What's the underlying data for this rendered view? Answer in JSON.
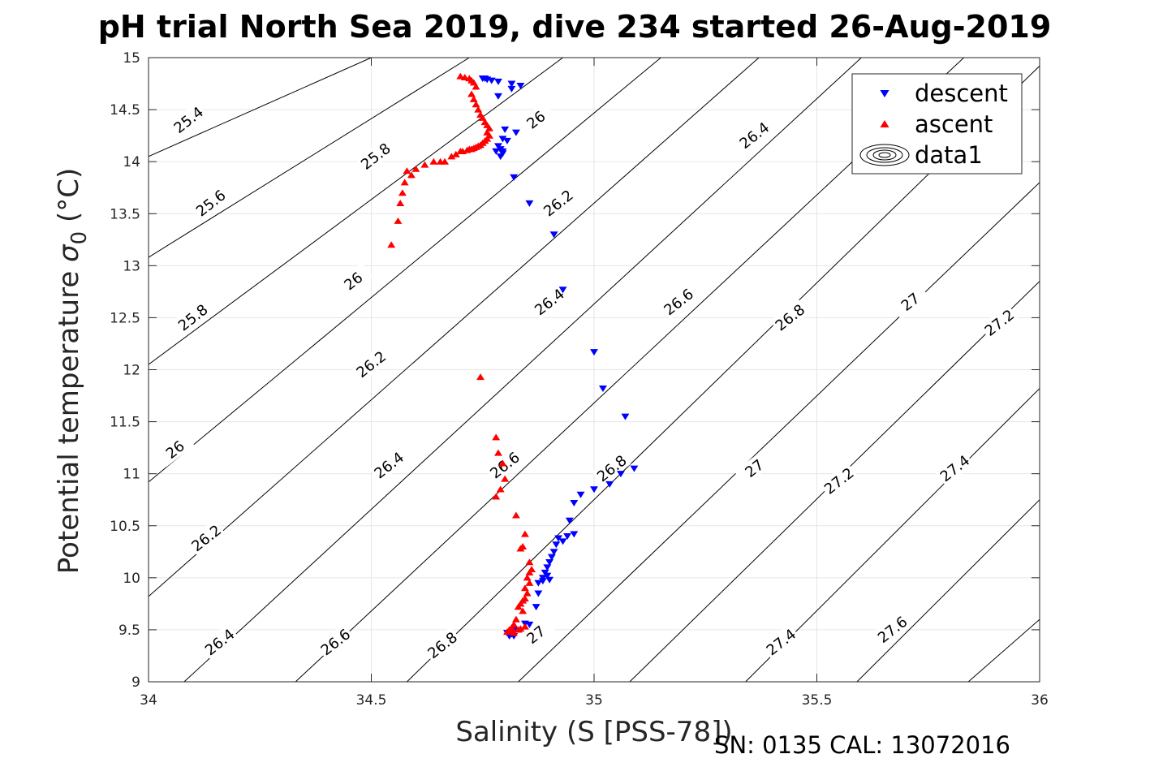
{
  "chart_data": {
    "type": "scatter",
    "title": "pH trial North Sea 2019, dive 234 started 26-Aug-2019",
    "xlabel": "Salinity (S [PSS-78])",
    "ylabel_main": "Potential temperature ",
    "ylabel_sigma": "σ",
    "ylabel_sub": "0",
    "ylabel_unit": " (°C)",
    "footer": "SN: 0135  CAL: 13072016",
    "xlim": [
      34,
      36
    ],
    "ylim": [
      9,
      15
    ],
    "xticks": [
      34,
      34.5,
      35,
      35.5,
      36
    ],
    "xtick_labels": [
      "34",
      "34.5",
      "35",
      "35.5",
      "36"
    ],
    "yticks": [
      9,
      9.5,
      10,
      10.5,
      11,
      11.5,
      12,
      12.5,
      13,
      13.5,
      14,
      14.5,
      15
    ],
    "ytick_labels": [
      "9",
      "9.5",
      "10",
      "10.5",
      "11",
      "11.5",
      "12",
      "12.5",
      "13",
      "13.5",
      "14",
      "14.5",
      "15"
    ],
    "grid": true,
    "legend_position": "top-right",
    "legend": [
      {
        "name": "descent",
        "marker": "triangle-down",
        "color": "#0000ff"
      },
      {
        "name": "ascent",
        "marker": "triangle-up",
        "color": "#ff0000"
      },
      {
        "name": "data1",
        "marker": "contour",
        "color": "#000000"
      }
    ],
    "contour_lines": [
      {
        "s0": 34.0,
        "t0": 14.05,
        "s1": 34.5,
        "t1": 15.0
      },
      {
        "s0": 34.0,
        "t0": 13.08,
        "s1": 34.72,
        "t1": 15.0
      },
      {
        "s0": 34.0,
        "t0": 12.05,
        "s1": 34.93,
        "t1": 15.0
      },
      {
        "s0": 34.0,
        "t0": 10.92,
        "s1": 35.15,
        "t1": 15.0
      },
      {
        "s0": 34.0,
        "t0": 9.82,
        "s1": 35.37,
        "t1": 15.0
      },
      {
        "s0": 34.08,
        "t0": 9.0,
        "s1": 35.6,
        "t1": 15.0
      },
      {
        "s0": 34.33,
        "t0": 9.0,
        "s1": 35.83,
        "t1": 15.0
      },
      {
        "s0": 34.58,
        "t0": 9.0,
        "s1": 36.0,
        "t1": 14.92
      },
      {
        "s0": 34.83,
        "t0": 9.0,
        "s1": 36.0,
        "t1": 13.8
      },
      {
        "s0": 35.08,
        "t0": 9.0,
        "s1": 36.0,
        "t1": 12.85
      },
      {
        "s0": 35.34,
        "t0": 9.0,
        "s1": 36.0,
        "t1": 11.82
      },
      {
        "s0": 35.59,
        "t0": 9.0,
        "s1": 36.0,
        "t1": 10.75
      },
      {
        "s0": 35.84,
        "t0": 9.0,
        "s1": 36.0,
        "t1": 9.6
      }
    ],
    "contour_labels": [
      {
        "text": "25.4",
        "s": 34.09,
        "t": 14.4
      },
      {
        "text": "25.8",
        "s": 34.51,
        "t": 14.05
      },
      {
        "text": "26",
        "s": 34.87,
        "t": 14.4
      },
      {
        "text": "26.4",
        "s": 35.36,
        "t": 14.25
      },
      {
        "text": "25.6",
        "s": 34.14,
        "t": 13.6
      },
      {
        "text": "26.2",
        "s": 34.92,
        "t": 13.6
      },
      {
        "text": "26",
        "s": 34.46,
        "t": 12.85
      },
      {
        "text": "26.4",
        "s": 34.9,
        "t": 12.65
      },
      {
        "text": "26.6",
        "s": 35.19,
        "t": 12.65
      },
      {
        "text": "26.8",
        "s": 35.44,
        "t": 12.5
      },
      {
        "text": "27",
        "s": 35.71,
        "t": 12.65
      },
      {
        "text": "27.2",
        "s": 35.91,
        "t": 12.45
      },
      {
        "text": "25.8",
        "s": 34.1,
        "t": 12.5
      },
      {
        "text": "26.2",
        "s": 34.5,
        "t": 12.05
      },
      {
        "text": "26",
        "s": 34.06,
        "t": 11.23
      },
      {
        "text": "26.4",
        "s": 34.54,
        "t": 11.08
      },
      {
        "text": "26.6",
        "s": 34.8,
        "t": 11.08
      },
      {
        "text": "26.8",
        "s": 35.04,
        "t": 11.05
      },
      {
        "text": "27",
        "s": 35.36,
        "t": 11.05
      },
      {
        "text": "27.2",
        "s": 35.55,
        "t": 10.93
      },
      {
        "text": "27.4",
        "s": 35.81,
        "t": 11.05
      },
      {
        "text": "26.2",
        "s": 34.13,
        "t": 10.38
      },
      {
        "text": "26.4",
        "s": 34.16,
        "t": 9.38
      },
      {
        "text": "26.6",
        "s": 34.42,
        "t": 9.38
      },
      {
        "text": "26.8",
        "s": 34.66,
        "t": 9.35
      },
      {
        "text": "27",
        "s": 34.87,
        "t": 9.45
      },
      {
        "text": "27.4",
        "s": 35.42,
        "t": 9.38
      },
      {
        "text": "27.6",
        "s": 35.67,
        "t": 9.5
      }
    ],
    "series": [
      {
        "name": "descent",
        "marker": "triangle-down",
        "color": "#0000ff",
        "points": [
          [
            34.75,
            14.8
          ],
          [
            34.76,
            14.79
          ],
          [
            34.755,
            14.8
          ],
          [
            34.77,
            14.78
          ],
          [
            34.785,
            14.77
          ],
          [
            34.815,
            14.75
          ],
          [
            34.835,
            14.73
          ],
          [
            34.785,
            14.63
          ],
          [
            34.815,
            14.7
          ],
          [
            34.8,
            14.31
          ],
          [
            34.825,
            14.28
          ],
          [
            34.795,
            14.22
          ],
          [
            34.805,
            14.2
          ],
          [
            34.785,
            14.15
          ],
          [
            34.79,
            14.12
          ],
          [
            34.795,
            14.1
          ],
          [
            34.78,
            14.1
          ],
          [
            34.79,
            14.05
          ],
          [
            34.795,
            14.08
          ],
          [
            34.82,
            13.85
          ],
          [
            34.855,
            13.6
          ],
          [
            34.91,
            13.3
          ],
          [
            34.93,
            12.77
          ],
          [
            35.0,
            12.17
          ],
          [
            35.02,
            11.82
          ],
          [
            35.07,
            11.55
          ],
          [
            35.09,
            11.05
          ],
          [
            35.06,
            11.0
          ],
          [
            35.035,
            10.9
          ],
          [
            35.0,
            10.85
          ],
          [
            34.97,
            10.8
          ],
          [
            34.955,
            10.72
          ],
          [
            34.945,
            10.55
          ],
          [
            34.955,
            10.42
          ],
          [
            34.94,
            10.4
          ],
          [
            34.92,
            10.38
          ],
          [
            34.93,
            10.35
          ],
          [
            34.915,
            10.32
          ],
          [
            34.91,
            10.25
          ],
          [
            34.905,
            10.2
          ],
          [
            34.9,
            10.15
          ],
          [
            34.895,
            10.1
          ],
          [
            34.89,
            10.05
          ],
          [
            34.895,
            10.02
          ],
          [
            34.885,
            10.0
          ],
          [
            34.9,
            9.98
          ],
          [
            34.875,
            9.95
          ],
          [
            34.885,
            9.97
          ],
          [
            34.875,
            9.85
          ],
          [
            34.87,
            9.72
          ],
          [
            34.855,
            9.55
          ],
          [
            34.845,
            9.56
          ],
          [
            34.82,
            9.5
          ],
          [
            34.815,
            9.46
          ],
          [
            34.81,
            9.45
          ],
          [
            34.805,
            9.47
          ],
          [
            34.81,
            9.44
          ],
          [
            34.82,
            9.44
          ]
        ]
      },
      {
        "name": "ascent",
        "marker": "triangle-up",
        "color": "#ff0000",
        "points": [
          [
            34.7,
            14.82
          ],
          [
            34.71,
            14.81
          ],
          [
            34.72,
            14.8
          ],
          [
            34.725,
            14.78
          ],
          [
            34.73,
            14.76
          ],
          [
            34.735,
            14.72
          ],
          [
            34.725,
            14.65
          ],
          [
            34.73,
            14.6
          ],
          [
            34.735,
            14.55
          ],
          [
            34.74,
            14.5
          ],
          [
            34.745,
            14.45
          ],
          [
            34.75,
            14.42
          ],
          [
            34.755,
            14.38
          ],
          [
            34.76,
            14.35
          ],
          [
            34.765,
            14.32
          ],
          [
            34.76,
            14.28
          ],
          [
            34.765,
            14.25
          ],
          [
            34.76,
            14.22
          ],
          [
            34.755,
            14.2
          ],
          [
            34.75,
            14.18
          ],
          [
            34.745,
            14.16
          ],
          [
            34.74,
            14.15
          ],
          [
            34.735,
            14.14
          ],
          [
            34.73,
            14.13
          ],
          [
            34.725,
            14.12
          ],
          [
            34.72,
            14.12
          ],
          [
            34.715,
            14.11
          ],
          [
            34.705,
            14.1
          ],
          [
            34.7,
            14.1
          ],
          [
            34.69,
            14.07
          ],
          [
            34.68,
            14.05
          ],
          [
            34.665,
            14.0
          ],
          [
            34.655,
            14.0
          ],
          [
            34.64,
            14.0
          ],
          [
            34.62,
            13.97
          ],
          [
            34.6,
            13.93
          ],
          [
            34.58,
            13.91
          ],
          [
            34.59,
            13.87
          ],
          [
            34.575,
            13.8
          ],
          [
            34.57,
            13.7
          ],
          [
            34.565,
            13.6
          ],
          [
            34.56,
            13.43
          ],
          [
            34.545,
            13.2
          ],
          [
            34.745,
            11.93
          ],
          [
            34.78,
            11.35
          ],
          [
            34.785,
            11.2
          ],
          [
            34.795,
            11.1
          ],
          [
            34.8,
            10.95
          ],
          [
            34.78,
            10.78
          ],
          [
            34.79,
            10.85
          ],
          [
            34.825,
            10.6
          ],
          [
            34.845,
            10.42
          ],
          [
            34.84,
            10.3
          ],
          [
            34.835,
            10.28
          ],
          [
            34.855,
            10.15
          ],
          [
            34.86,
            10.08
          ],
          [
            34.855,
            10.05
          ],
          [
            34.85,
            10.0
          ],
          [
            34.855,
            9.95
          ],
          [
            34.845,
            9.9
          ],
          [
            34.85,
            9.85
          ],
          [
            34.845,
            9.8
          ],
          [
            34.84,
            9.78
          ],
          [
            34.835,
            9.75
          ],
          [
            34.83,
            9.72
          ],
          [
            34.84,
            9.68
          ],
          [
            34.825,
            9.6
          ],
          [
            34.82,
            9.55
          ],
          [
            34.815,
            9.52
          ],
          [
            34.81,
            9.5
          ],
          [
            34.805,
            9.48
          ],
          [
            34.815,
            9.49
          ],
          [
            34.83,
            9.5
          ],
          [
            34.845,
            9.53
          ],
          [
            34.835,
            9.51
          ],
          [
            34.82,
            9.47
          ]
        ]
      }
    ]
  }
}
